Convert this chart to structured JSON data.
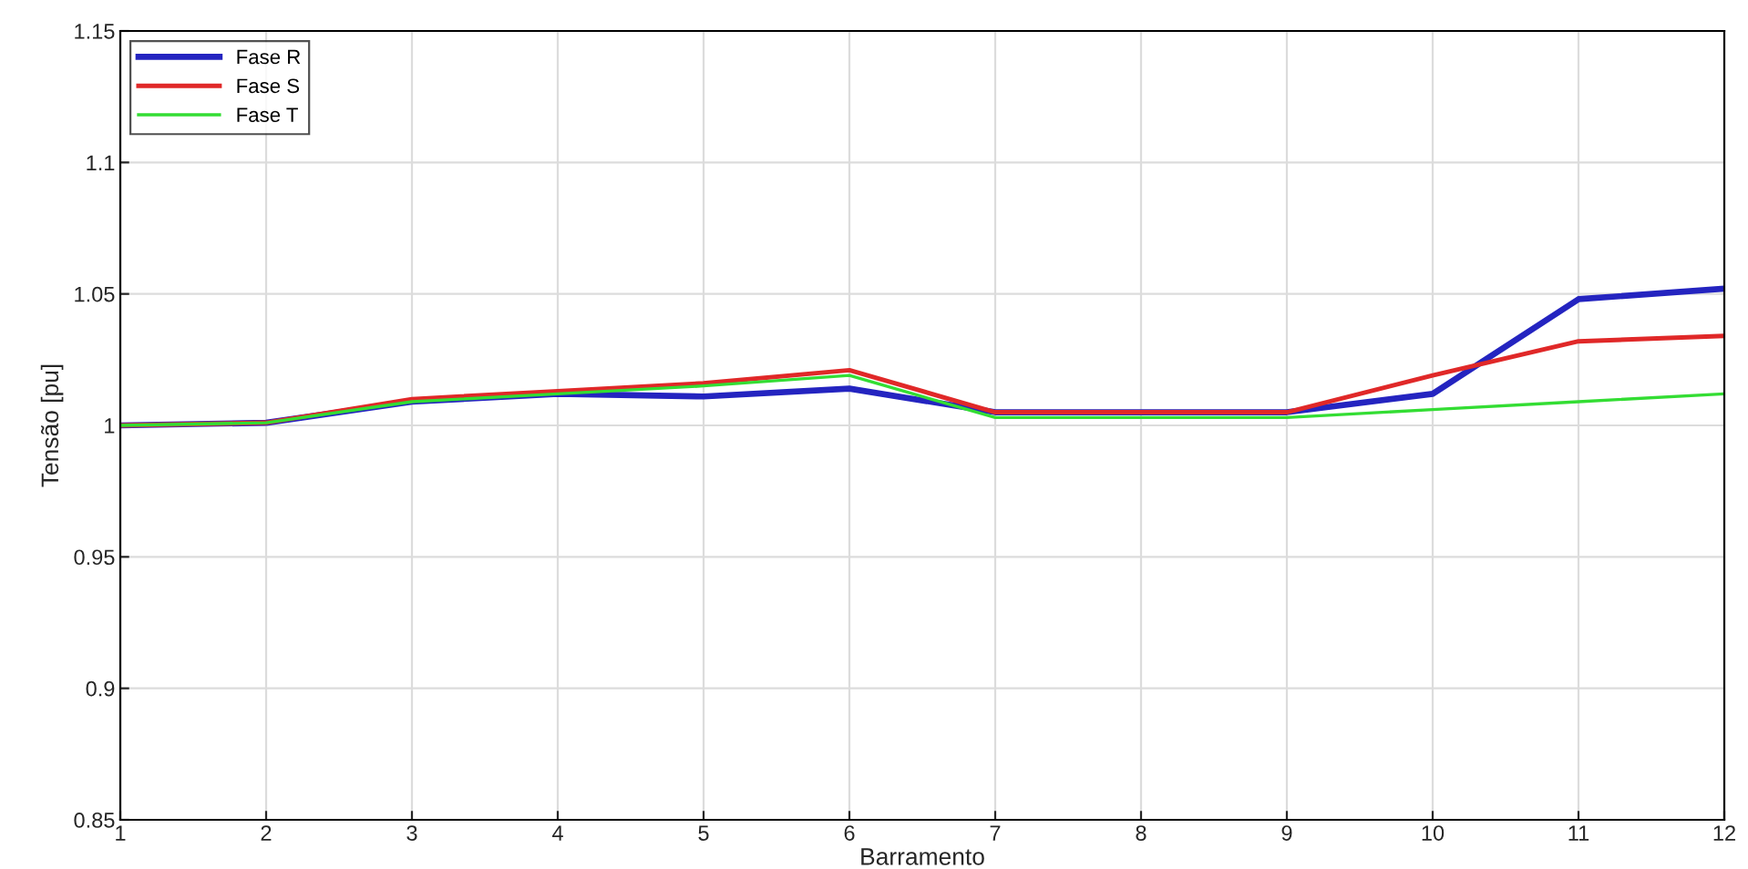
{
  "chart_data": {
    "type": "line",
    "xlabel": "Barramento",
    "ylabel": "Tensão [pu]",
    "x": [
      1,
      2,
      3,
      4,
      5,
      6,
      7,
      8,
      9,
      10,
      11,
      12
    ],
    "series": [
      {
        "name": "Fase R",
        "color": "#2424c0",
        "values": [
          1.0,
          1.001,
          1.009,
          1.012,
          1.011,
          1.014,
          1.005,
          1.005,
          1.005,
          1.012,
          1.048,
          1.052
        ]
      },
      {
        "name": "Fase S",
        "color": "#e02828",
        "values": [
          1.0,
          1.001,
          1.01,
          1.013,
          1.016,
          1.021,
          1.005,
          1.005,
          1.005,
          1.019,
          1.032,
          1.034
        ]
      },
      {
        "name": "Fase T",
        "color": "#33dd33",
        "values": [
          1.0,
          1.001,
          1.009,
          1.012,
          1.015,
          1.019,
          1.003,
          1.003,
          1.003,
          1.006,
          1.009,
          1.012
        ]
      }
    ],
    "xlim": [
      1,
      12
    ],
    "xticks": [
      1,
      2,
      3,
      4,
      5,
      6,
      7,
      8,
      9,
      10,
      11,
      12
    ],
    "ylim": [
      0.85,
      1.15
    ],
    "yticks": [
      0.85,
      0.9,
      0.95,
      1,
      1.05,
      1.1,
      1.15
    ],
    "grid": true,
    "legend": "top left"
  }
}
